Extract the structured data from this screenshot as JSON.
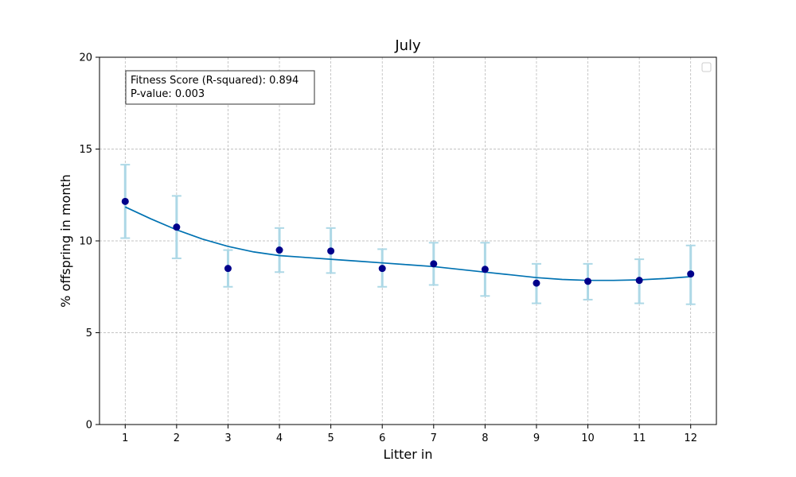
{
  "chart_data": {
    "type": "line",
    "title": "July",
    "xlabel": "Litter in",
    "ylabel": "% offspring in month",
    "x": [
      1,
      2,
      3,
      4,
      5,
      6,
      7,
      8,
      9,
      10,
      11,
      12
    ],
    "xticks": [
      "1",
      "2",
      "3",
      "4",
      "5",
      "6",
      "7",
      "8",
      "9",
      "10",
      "11",
      "12"
    ],
    "xlim": [
      0.5,
      12.5
    ],
    "ylim": [
      0,
      20
    ],
    "yticks": [
      0,
      5,
      10,
      15,
      20
    ],
    "yticklabels": [
      "0",
      "5",
      "10",
      "15",
      "20"
    ],
    "grid": true,
    "legend": "top-right",
    "series": [
      {
        "kind": "points-with-error",
        "values": [
          12.15,
          10.75,
          8.5,
          9.5,
          9.45,
          8.5,
          8.75,
          8.45,
          7.7,
          7.8,
          7.85,
          8.2
        ],
        "err_low": [
          10.15,
          9.05,
          7.5,
          8.3,
          8.25,
          7.5,
          7.6,
          7.0,
          6.6,
          6.8,
          6.6,
          6.55
        ],
        "err_high": [
          14.15,
          12.45,
          9.5,
          10.7,
          10.7,
          9.55,
          9.9,
          9.9,
          8.75,
          8.75,
          9.0,
          9.75
        ],
        "color": "#00008b",
        "errcolor": "#add8e6"
      },
      {
        "kind": "fit-line",
        "x": [
          1,
          1.5,
          2,
          2.5,
          3,
          3.5,
          4,
          4.5,
          5,
          5.5,
          6,
          6.5,
          7,
          7.5,
          8,
          8.5,
          9,
          9.5,
          10,
          10.5,
          11,
          11.5,
          12
        ],
        "values": [
          11.85,
          11.2,
          10.6,
          10.1,
          9.7,
          9.4,
          9.2,
          9.1,
          9.0,
          8.9,
          8.8,
          8.7,
          8.6,
          8.45,
          8.3,
          8.15,
          8.0,
          7.9,
          7.85,
          7.85,
          7.88,
          7.95,
          8.05
        ],
        "color": "#0072b2"
      }
    ],
    "annotation": {
      "line1": "Fitness Score (R-squared): 0.894",
      "line2": "P-value: 0.003"
    }
  }
}
